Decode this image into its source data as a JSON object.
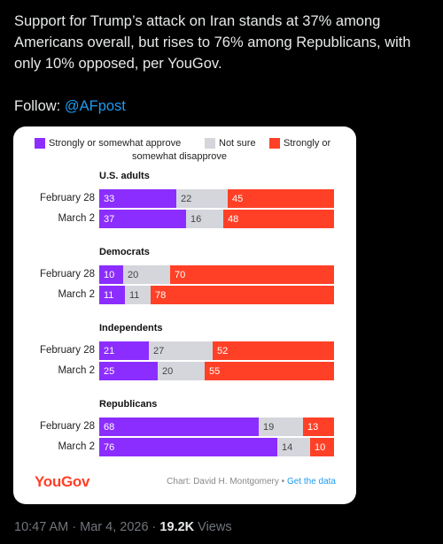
{
  "tweet": {
    "text": "Support for Trump’s attack on Iran stands at 37% among Americans overall, but rises to 76% among Republicans, with only 10% opposed, per YouGov.",
    "follow_label": "Follow:",
    "follow_handle": "@AFpost"
  },
  "colors": {
    "approve": "#8c2dff",
    "notsure": "#d5d6dc",
    "disapprove": "#ff4026"
  },
  "chart_data": {
    "type": "bar",
    "stacked": true,
    "legend": [
      "Strongly or somewhat approve",
      "Not sure",
      "Strongly or somewhat disapprove"
    ],
    "groups": [
      {
        "name": "U.S. adults",
        "rows": [
          {
            "label": "February 28",
            "values": [
              33,
              22,
              45
            ]
          },
          {
            "label": "March 2",
            "values": [
              37,
              16,
              48
            ]
          }
        ]
      },
      {
        "name": "Democrats",
        "rows": [
          {
            "label": "February 28",
            "values": [
              10,
              20,
              70
            ]
          },
          {
            "label": "March 2",
            "values": [
              11,
              11,
              78
            ]
          }
        ]
      },
      {
        "name": "Independents",
        "rows": [
          {
            "label": "February 28",
            "values": [
              21,
              27,
              52
            ]
          },
          {
            "label": "March 2",
            "values": [
              25,
              20,
              55
            ]
          }
        ]
      },
      {
        "name": "Republicans",
        "rows": [
          {
            "label": "February 28",
            "values": [
              68,
              19,
              13
            ]
          },
          {
            "label": "March 2",
            "values": [
              76,
              14,
              10
            ]
          }
        ]
      }
    ]
  },
  "card": {
    "logo": "YouGov",
    "credit": "Chart: David H. Montgomery • ",
    "credit_link": "Get the data"
  },
  "meta": {
    "time": "10:47 AM · Mar 4, 2026 · ",
    "views_count": "19.2K",
    "views_label": " Views"
  }
}
